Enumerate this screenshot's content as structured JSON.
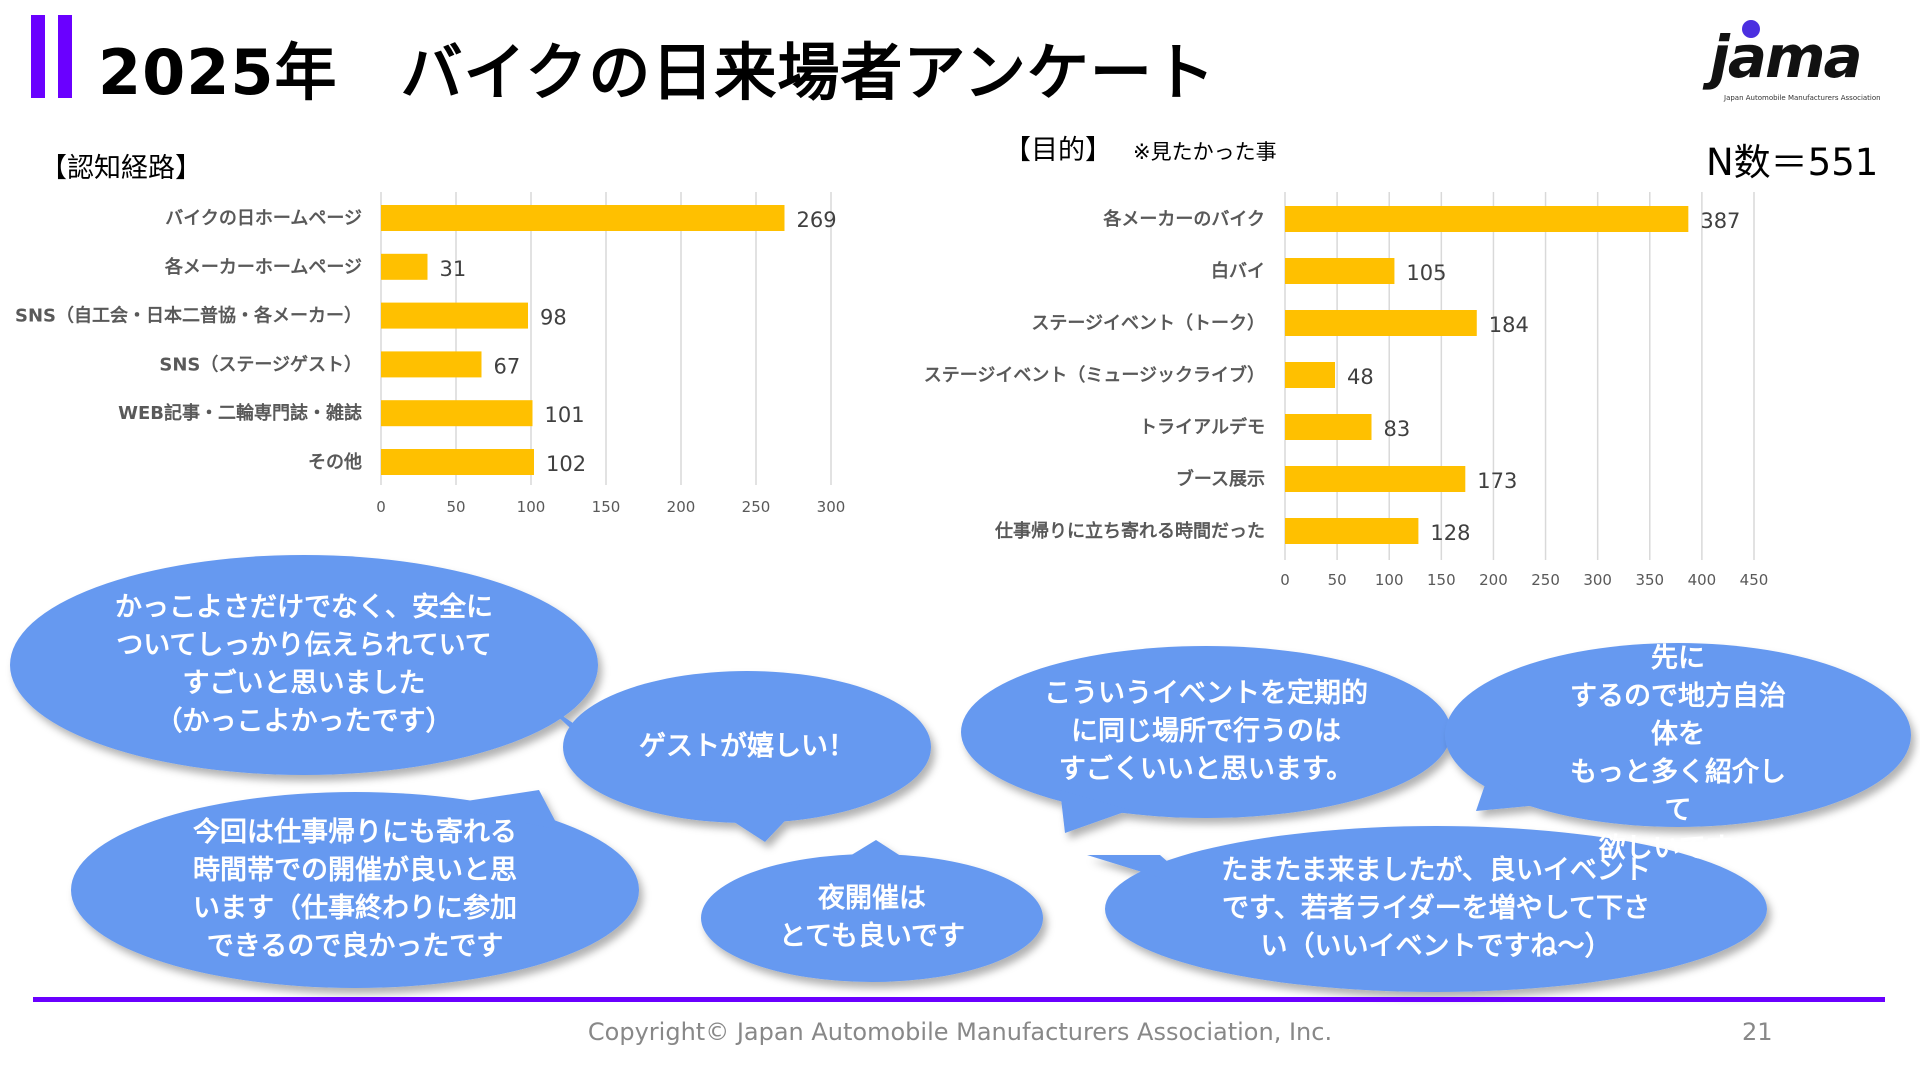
{
  "header": {
    "title": "2025年　バイクの日来場者アンケート",
    "accent_color": "#6a00ff",
    "logo_text": "jama",
    "logo_subtext": "Japan Automobile Manufacturers Association"
  },
  "sample_size": "N数＝551",
  "chart_data": [
    {
      "type": "bar",
      "orientation": "horizontal",
      "title": "【認知経路】",
      "categories": [
        "バイクの日ホームページ",
        "各メーカーホームページ",
        "SNS（自工会・日本二普協・各メーカー）",
        "SNS（ステージゲスト）",
        "WEB記事・二輪専門誌・雑誌",
        "その他"
      ],
      "values": [
        269,
        31,
        98,
        67,
        101,
        102
      ],
      "xlim": [
        0,
        300
      ],
      "ticks": [
        0,
        50,
        100,
        150,
        200,
        250,
        300
      ],
      "grid": true,
      "bar_color": "#ffc000"
    },
    {
      "type": "bar",
      "orientation": "horizontal",
      "title": "【目的】",
      "subtitle": "※見たかった事",
      "categories": [
        "各メーカーのバイク",
        "白バイ",
        "ステージイベント（トーク）",
        "ステージイベント（ミュージックライブ）",
        "トライアルデモ",
        "ブース展示",
        "仕事帰りに立ち寄れる時間だった"
      ],
      "values": [
        387,
        105,
        184,
        48,
        83,
        173,
        128
      ],
      "xlim": [
        0,
        450
      ],
      "ticks": [
        0,
        50,
        100,
        150,
        200,
        250,
        300,
        350,
        400,
        450
      ],
      "grid": true,
      "bar_color": "#ffc000"
    }
  ],
  "comments": [
    "かっこよさだけでなく、安全に\nついてしっかり伝えられていて\nすごいと思いました\n（かっこよかったです）",
    "ゲストが嬉しい！",
    "今回は仕事帰りにも寄れる\n時間帯での開催が良いと思\nいます（仕事終わりに参加\nできるので良かったです",
    "夜開催は\nとても良いです",
    "こういうイベントを定期的\nに同じ場所で行うのは\nすごくいいと思います。",
    "ツーリングの目的先に\nするので地方自治体を\nもっと多く紹介して\n欲しいです。",
    "たまたま来ましたが、良いイベント\nです、若者ライダーを増やして下さ\nい（いいイベントですね～）"
  ],
  "bubble_color": "#6699f0",
  "footer": {
    "copyright": "Copyright© Japan Automobile Manufacturers Association, Inc.",
    "page_number": "21"
  }
}
